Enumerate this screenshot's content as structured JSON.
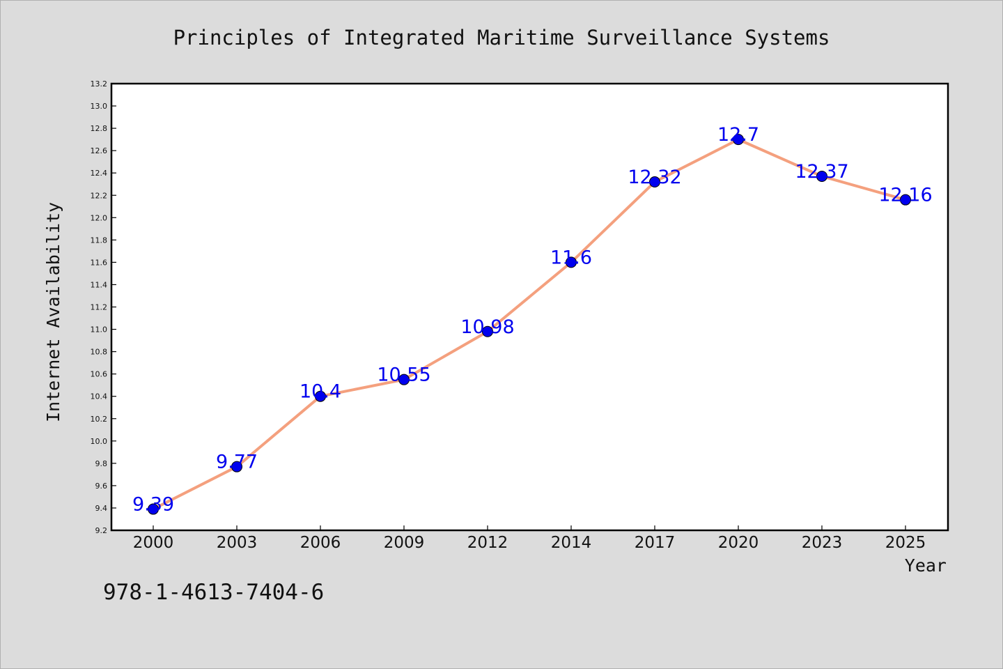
{
  "chart_data": {
    "type": "line",
    "title": "Principles of Integrated Maritime Surveillance Systems",
    "xlabel": "Year",
    "ylabel": "Internet Availability",
    "categories": [
      "2000",
      "2003",
      "2006",
      "2009",
      "2012",
      "2014",
      "2017",
      "2020",
      "2023",
      "2025"
    ],
    "series": [
      {
        "values": [
          9.39,
          9.77,
          10.4,
          10.55,
          10.98,
          11.6,
          12.32,
          12.7,
          12.37,
          12.16
        ],
        "labels": [
          "9.39",
          "9.77",
          "10.4",
          "10.55",
          "10.98",
          "11.6",
          "12.32",
          "12.7",
          "12.37",
          "12.16"
        ]
      }
    ],
    "ylim": [
      9.2,
      13.2
    ],
    "yticks": [
      "9.2",
      "9.4",
      "9.6",
      "9.8",
      "10.0",
      "10.2",
      "10.4",
      "10.6",
      "10.8",
      "11.0",
      "11.2",
      "11.4",
      "11.6",
      "11.8",
      "12.0",
      "12.2",
      "12.4",
      "12.6",
      "12.8",
      "13.0",
      "13.2"
    ],
    "grid": false,
    "line_color": "#f4a07e",
    "marker_color": "#0000ee",
    "label_color": "#0000ee",
    "plot_bg": "#ffffff",
    "figure_bg": "#dcdcdc"
  },
  "footer": {
    "isbn": "978-1-4613-7404-6"
  }
}
